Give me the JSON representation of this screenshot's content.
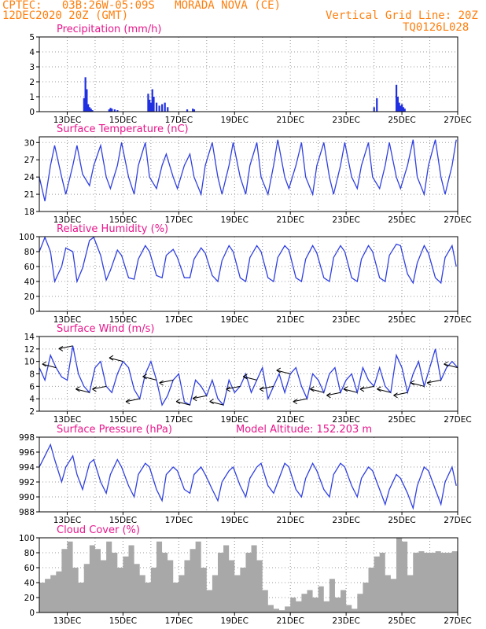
{
  "header": {
    "line1": "CPTEC:   03B:26W-05:09S   MORADA NOVA (CE)",
    "line2": "12DEC2020 20Z (GMT)",
    "right1": "Vertical Grid Line: 20Z",
    "right2": "TQ0126L028"
  },
  "colors": {
    "line": "#3040e0",
    "bar": "#2030e0",
    "cloud": "#a8a8a8",
    "title": "#e8168c",
    "header": "#ff7f0e"
  },
  "x_tick_labels": [
    "13DEC",
    "15DEC",
    "17DEC",
    "19DEC",
    "21DEC",
    "23DEC",
    "25DEC",
    "27DEC"
  ],
  "chart_data": [
    {
      "type": "bar",
      "title": "Precipitation (mm/h)",
      "ylim": [
        0,
        5
      ],
      "yticks": [
        "0",
        "1",
        "2",
        "3",
        "4",
        "5"
      ],
      "x": [
        13.6,
        13.65,
        13.7,
        13.75,
        13.8,
        13.85,
        13.9,
        14.5,
        14.55,
        14.6,
        14.7,
        14.8,
        15.9,
        15.95,
        16.0,
        16.05,
        16.1,
        16.2,
        16.3,
        16.4,
        16.5,
        16.6,
        17.3,
        17.5,
        17.55,
        24.0,
        24.1,
        24.8,
        24.85,
        24.9,
        24.95,
        25.0,
        25.05,
        25.1
      ],
      "values": [
        0.9,
        2.3,
        1.5,
        0.5,
        0.3,
        0.2,
        0.1,
        0.15,
        0.25,
        0.2,
        0.15,
        0.1,
        1.2,
        0.8,
        0.6,
        1.5,
        1.0,
        0.6,
        0.4,
        0.5,
        0.6,
        0.3,
        0.15,
        0.2,
        0.15,
        0.3,
        0.9,
        1.8,
        1.0,
        0.6,
        0.4,
        0.5,
        0.3,
        0.2
      ]
    },
    {
      "type": "line",
      "title": "Surface Temperature (nC)",
      "ylim": [
        18,
        31
      ],
      "yticks": [
        "18",
        "21",
        "24",
        "27",
        "30"
      ],
      "x": [
        12.0,
        12.2,
        12.4,
        12.55,
        12.8,
        12.95,
        13.2,
        13.35,
        13.55,
        13.8,
        13.95,
        14.2,
        14.4,
        14.55,
        14.8,
        14.95,
        15.2,
        15.4,
        15.55,
        15.8,
        15.95,
        16.2,
        16.4,
        16.55,
        16.8,
        16.95,
        17.2,
        17.4,
        17.55,
        17.8,
        17.95,
        18.2,
        18.4,
        18.55,
        18.8,
        18.95,
        19.2,
        19.4,
        19.55,
        19.8,
        19.95,
        20.2,
        20.4,
        20.55,
        20.8,
        20.95,
        21.2,
        21.4,
        21.55,
        21.8,
        21.95,
        22.2,
        22.4,
        22.55,
        22.8,
        22.95,
        23.2,
        23.4,
        23.55,
        23.8,
        23.95,
        24.2,
        24.4,
        24.55,
        24.8,
        24.95,
        25.2,
        25.4,
        25.55,
        25.8,
        25.95,
        26.2,
        26.4,
        26.55,
        26.8,
        26.95
      ],
      "values": [
        24.0,
        19.8,
        26.0,
        29.5,
        24.0,
        21.0,
        26.0,
        29.5,
        24.5,
        22.5,
        26.0,
        29.5,
        24.0,
        22.0,
        26.0,
        30.0,
        24.0,
        21.0,
        26.0,
        30.0,
        24.0,
        22.0,
        26.0,
        28.0,
        24.0,
        22.0,
        26.0,
        28.0,
        24.0,
        21.0,
        26.0,
        30.0,
        24.0,
        21.0,
        26.0,
        30.0,
        24.0,
        21.0,
        26.0,
        30.0,
        24.0,
        21.0,
        26.0,
        30.5,
        24.0,
        22.0,
        26.0,
        30.0,
        24.0,
        21.0,
        26.0,
        30.0,
        24.0,
        21.0,
        26.0,
        30.0,
        24.0,
        22.0,
        26.0,
        30.0,
        24.0,
        22.0,
        26.0,
        30.0,
        24.0,
        22.0,
        26.0,
        30.5,
        24.0,
        21.0,
        26.0,
        30.5,
        24.0,
        21.0,
        26.0,
        30.5
      ]
    },
    {
      "type": "line",
      "title": "Relative Humidity (%)",
      "ylim": [
        0,
        100
      ],
      "yticks": [
        "0",
        "20",
        "40",
        "60",
        "80",
        "100"
      ],
      "x": [
        12.0,
        12.2,
        12.4,
        12.55,
        12.8,
        12.95,
        13.2,
        13.35,
        13.55,
        13.8,
        13.95,
        14.2,
        14.4,
        14.55,
        14.8,
        14.95,
        15.2,
        15.4,
        15.55,
        15.8,
        15.95,
        16.2,
        16.4,
        16.55,
        16.8,
        16.95,
        17.2,
        17.4,
        17.55,
        17.8,
        17.95,
        18.2,
        18.4,
        18.55,
        18.8,
        18.95,
        19.2,
        19.4,
        19.55,
        19.8,
        19.95,
        20.2,
        20.4,
        20.55,
        20.8,
        20.95,
        21.2,
        21.4,
        21.55,
        21.8,
        21.95,
        22.2,
        22.4,
        22.55,
        22.8,
        22.95,
        23.2,
        23.4,
        23.55,
        23.8,
        23.95,
        24.2,
        24.4,
        24.55,
        24.8,
        24.95,
        25.2,
        25.4,
        25.55,
        25.8,
        25.95,
        26.2,
        26.4,
        26.55,
        26.8,
        26.95
      ],
      "values": [
        80,
        99,
        80,
        40,
        60,
        85,
        80,
        40,
        58,
        95,
        99,
        75,
        42,
        55,
        82,
        75,
        45,
        43,
        70,
        88,
        80,
        48,
        45,
        75,
        83,
        72,
        45,
        45,
        70,
        85,
        78,
        48,
        40,
        68,
        88,
        80,
        45,
        40,
        72,
        88,
        80,
        45,
        40,
        72,
        88,
        82,
        45,
        40,
        70,
        88,
        78,
        45,
        40,
        72,
        88,
        80,
        45,
        40,
        70,
        88,
        80,
        45,
        40,
        75,
        90,
        88,
        50,
        38,
        65,
        88,
        78,
        45,
        38,
        72,
        88,
        60
      ]
    },
    {
      "type": "line",
      "title": "Surface Wind (m/s)",
      "ylim": [
        2,
        14
      ],
      "yticks": [
        "2",
        "4",
        "6",
        "8",
        "10",
        "12",
        "14"
      ],
      "x": [
        12.0,
        12.2,
        12.4,
        12.6,
        12.8,
        13.0,
        13.2,
        13.4,
        13.6,
        13.8,
        14.0,
        14.2,
        14.4,
        14.6,
        14.8,
        15.0,
        15.2,
        15.4,
        15.6,
        15.8,
        16.0,
        16.2,
        16.4,
        16.6,
        16.8,
        17.0,
        17.2,
        17.4,
        17.6,
        17.8,
        18.0,
        18.2,
        18.4,
        18.6,
        18.8,
        19.0,
        19.2,
        19.4,
        19.6,
        19.8,
        20.0,
        20.2,
        20.4,
        20.6,
        20.8,
        21.0,
        21.2,
        21.4,
        21.6,
        21.8,
        22.0,
        22.2,
        22.4,
        22.6,
        22.8,
        23.0,
        23.2,
        23.4,
        23.6,
        23.8,
        24.0,
        24.2,
        24.4,
        24.6,
        24.8,
        25.0,
        25.2,
        25.4,
        25.6,
        25.8,
        26.0,
        26.2,
        26.4,
        26.6,
        26.8,
        27.0
      ],
      "values": [
        9,
        7,
        11,
        9,
        7.5,
        7,
        12.5,
        8,
        6,
        5,
        9,
        10,
        6,
        5,
        8,
        10,
        9,
        5.5,
        4,
        8,
        10,
        7,
        3,
        4.5,
        7,
        8,
        3.5,
        3,
        7,
        6,
        4.5,
        7,
        4,
        3,
        7,
        5,
        6,
        8,
        5,
        7,
        9,
        4,
        6,
        8,
        5,
        8,
        9,
        6,
        4,
        8,
        7,
        5,
        8,
        9,
        5,
        7,
        8,
        5,
        9,
        7,
        6,
        9,
        6,
        5,
        11,
        9,
        5,
        8,
        10,
        6,
        9,
        12,
        7,
        9,
        10,
        9
      ],
      "arrow_legend": "wind direction arrows point west"
    },
    {
      "type": "line",
      "title": "Surface Pressure (hPa)",
      "annotation": "Model Altitude: 152.203 m",
      "ylim": [
        988,
        998
      ],
      "yticks": [
        "988",
        "990",
        "992",
        "994",
        "996",
        "998"
      ],
      "x": [
        12.0,
        12.2,
        12.4,
        12.55,
        12.8,
        12.95,
        13.2,
        13.35,
        13.55,
        13.8,
        13.95,
        14.2,
        14.4,
        14.55,
        14.8,
        14.95,
        15.2,
        15.4,
        15.55,
        15.8,
        15.95,
        16.2,
        16.4,
        16.55,
        16.8,
        16.95,
        17.2,
        17.4,
        17.55,
        17.8,
        17.95,
        18.2,
        18.4,
        18.55,
        18.8,
        18.95,
        19.2,
        19.4,
        19.55,
        19.8,
        19.95,
        20.2,
        20.4,
        20.55,
        20.8,
        20.95,
        21.2,
        21.4,
        21.55,
        21.8,
        21.95,
        22.2,
        22.4,
        22.55,
        22.8,
        22.95,
        23.2,
        23.4,
        23.55,
        23.8,
        23.95,
        24.2,
        24.4,
        24.55,
        24.8,
        24.95,
        25.2,
        25.4,
        25.55,
        25.8,
        25.95,
        26.2,
        26.4,
        26.55,
        26.8,
        26.95
      ],
      "values": [
        994,
        995.5,
        997,
        995,
        992,
        994,
        995.5,
        993,
        991,
        994.5,
        995,
        992,
        990.5,
        993,
        995,
        994,
        991.5,
        990,
        993,
        994.5,
        994,
        991,
        989.5,
        993,
        994,
        993.5,
        991,
        990.5,
        993,
        994,
        993,
        991,
        989.5,
        992,
        993.5,
        994,
        991.5,
        990,
        992.5,
        994,
        994.5,
        991.5,
        990.5,
        992,
        994.5,
        994,
        991,
        990,
        992.5,
        994.5,
        993.5,
        991,
        990,
        993,
        994.5,
        994,
        991.5,
        990,
        992.5,
        994,
        993.5,
        991,
        989,
        991,
        993,
        992.5,
        990.5,
        988.5,
        991.5,
        994,
        993.5,
        991,
        989,
        992,
        994,
        991.5
      ]
    },
    {
      "type": "area",
      "title": "Cloud Cover (%)",
      "ylim": [
        0,
        100
      ],
      "yticks": [
        "0",
        "20",
        "40",
        "60",
        "80",
        "100"
      ],
      "x": [
        12.0,
        12.2,
        12.4,
        12.6,
        12.8,
        13.0,
        13.2,
        13.4,
        13.6,
        13.8,
        14.0,
        14.2,
        14.4,
        14.6,
        14.8,
        15.0,
        15.2,
        15.4,
        15.6,
        15.8,
        16.0,
        16.2,
        16.4,
        16.6,
        16.8,
        17.0,
        17.2,
        17.4,
        17.6,
        17.8,
        18.0,
        18.2,
        18.4,
        18.6,
        18.8,
        19.0,
        19.2,
        19.4,
        19.6,
        19.8,
        20.0,
        20.2,
        20.4,
        20.6,
        20.8,
        21.0,
        21.2,
        21.4,
        21.6,
        21.8,
        22.0,
        22.2,
        22.4,
        22.6,
        22.8,
        23.0,
        23.2,
        23.4,
        23.6,
        23.8,
        24.0,
        24.2,
        24.4,
        24.6,
        24.8,
        25.0,
        25.2,
        25.4,
        25.6,
        25.8,
        26.0,
        26.2,
        26.4,
        26.6,
        26.8,
        27.0
      ],
      "values": [
        40,
        45,
        50,
        55,
        85,
        95,
        60,
        40,
        65,
        90,
        85,
        70,
        95,
        80,
        60,
        75,
        90,
        65,
        50,
        40,
        60,
        95,
        80,
        70,
        40,
        50,
        70,
        85,
        95,
        60,
        30,
        50,
        80,
        90,
        70,
        50,
        60,
        80,
        90,
        70,
        30,
        10,
        5,
        3,
        8,
        20,
        15,
        25,
        30,
        20,
        35,
        15,
        45,
        20,
        30,
        10,
        5,
        25,
        40,
        60,
        75,
        80,
        50,
        45,
        100,
        95,
        50,
        80,
        82,
        80,
        80,
        82,
        80,
        80,
        82,
        80
      ]
    }
  ]
}
